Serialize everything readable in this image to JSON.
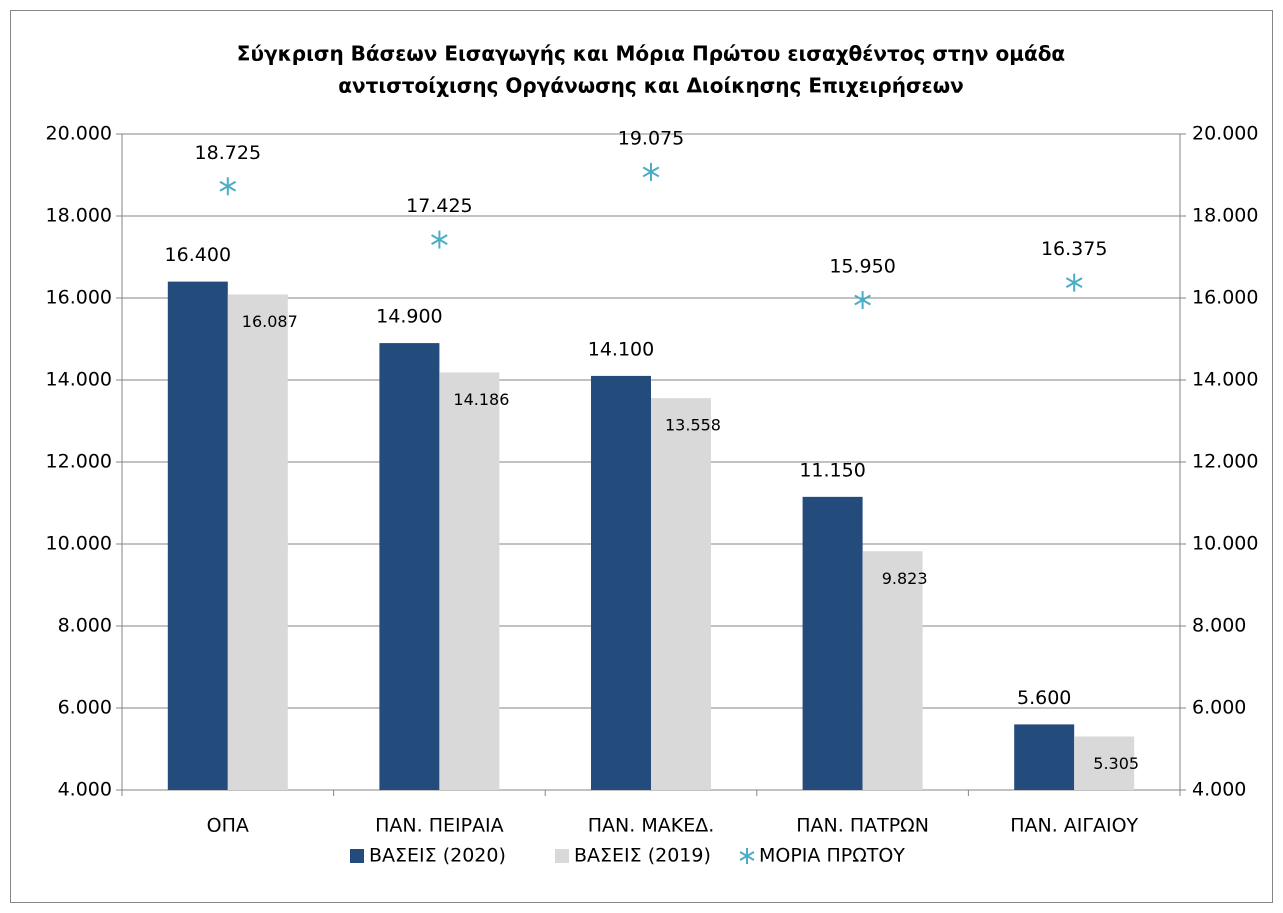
{
  "chart_data": {
    "type": "bar",
    "title": [
      "Σύγκριση Βάσεων Εισαγωγής και Μόρια Πρώτου εισαχθέντος στην ομάδα",
      "αντιστοίχισης Οργάνωσης και Διοίκησης Επιχειρήσεων"
    ],
    "categories": [
      "ΟΠΑ",
      "ΠΑΝ. ΠΕΙΡΑΙΑ",
      "ΠΑΝ. ΜΑΚΕΔ.",
      "ΠΑΝ. ΠΑΤΡΩΝ",
      "ΠΑΝ. ΑΙΓΑΙΟΥ"
    ],
    "series": [
      {
        "name": "ΒΑΣΕΙΣ (2020)",
        "type": "bar",
        "color": "#234b7c",
        "values": [
          16400,
          14900,
          14100,
          11150,
          5600
        ],
        "value_labels": [
          "16.400",
          "14.900",
          "14.100",
          "11.150",
          "5.600"
        ]
      },
      {
        "name": "ΒΑΣΕΙΣ (2019)",
        "type": "bar",
        "color": "#d9d9d9",
        "values": [
          16087,
          14186,
          13558,
          9823,
          5305
        ],
        "value_labels": [
          "16.087",
          "14.186",
          "13.558",
          "9.823",
          "5.305"
        ]
      },
      {
        "name": "ΜΟΡΙΑ ΠΡΩΤΟΥ",
        "type": "scatter",
        "axis": "y2",
        "color": "#4bacc6",
        "values": [
          18725,
          17425,
          19075,
          15950,
          16375
        ],
        "value_labels": [
          "18.725",
          "17.425",
          "19.075",
          "15.950",
          "16.375"
        ]
      }
    ],
    "ylim": [
      4000,
      20000
    ],
    "yticks": [
      {
        "value": 4000,
        "label": "4.000"
      },
      {
        "value": 6000,
        "label": "6.000"
      },
      {
        "value": 8000,
        "label": "8.000"
      },
      {
        "value": 10000,
        "label": "10.000"
      },
      {
        "value": 12000,
        "label": "12.000"
      },
      {
        "value": 14000,
        "label": "14.000"
      },
      {
        "value": 16000,
        "label": "16.000"
      },
      {
        "value": 18000,
        "label": "18.000"
      },
      {
        "value": 20000,
        "label": "20.000"
      }
    ],
    "y2lim": [
      4000,
      20000
    ],
    "y2ticks": [
      {
        "value": 4000,
        "label": "4.000"
      },
      {
        "value": 6000,
        "label": "6.000"
      },
      {
        "value": 8000,
        "label": "8.000"
      },
      {
        "value": 10000,
        "label": "10.000"
      },
      {
        "value": 12000,
        "label": "12.000"
      },
      {
        "value": 14000,
        "label": "14.000"
      },
      {
        "value": 16000,
        "label": "16.000"
      },
      {
        "value": 18000,
        "label": "18.000"
      },
      {
        "value": 20000,
        "label": "20.000"
      }
    ],
    "grid": true,
    "legend": "bottom"
  }
}
